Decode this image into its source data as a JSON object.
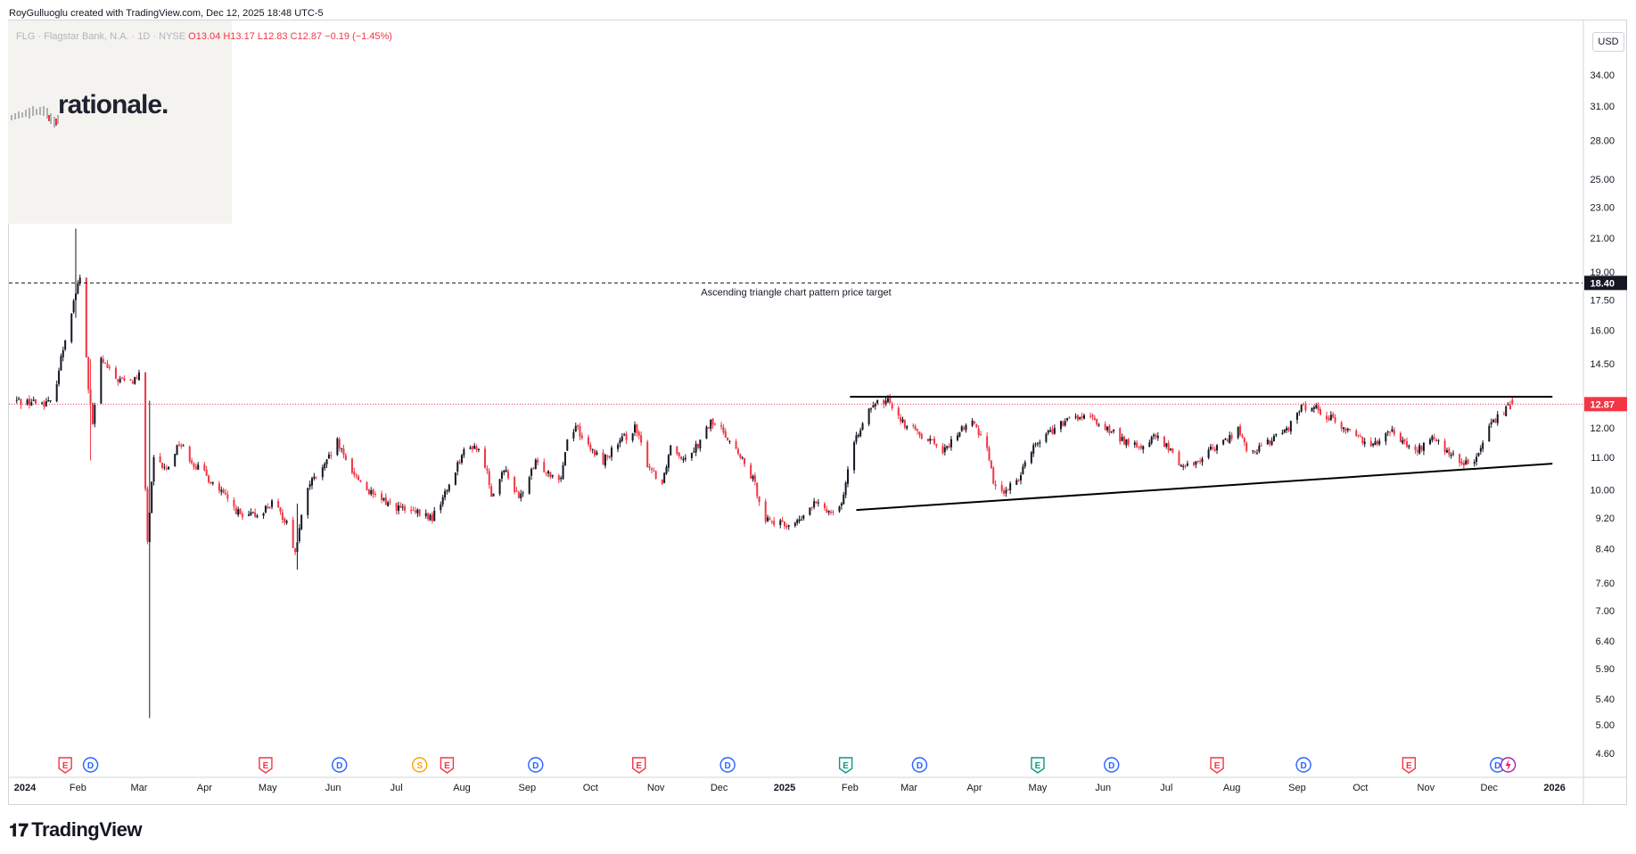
{
  "header": {
    "created_by": "RoyGulluoglu created with TradingView.com, Dec 12, 2025 18:48 UTC-5"
  },
  "legend": {
    "symbol": "FLG · Flagstar Bank, N.A. · 1D · NYSE",
    "open_label": "O",
    "open": "13.04",
    "high_label": "H",
    "high": "13.17",
    "low_label": "L",
    "low": "12.83",
    "close_label": "C",
    "close": "12.87",
    "change": "−0.19 (−1.45%)"
  },
  "watermark": {
    "text": "rationale."
  },
  "currency": "USD",
  "footer": {
    "brand": "TradingView",
    "brand_icon": "tradingview-logo-icon"
  },
  "colors": {
    "up": "#131722",
    "down": "#f23645",
    "price_line": "#f23645",
    "trendline": "#000000",
    "earnings": "#f23645",
    "dividend": "#2962ff",
    "split": "#f7a600",
    "earnings_future": "#089981"
  },
  "chart_data": {
    "type": "candlestick",
    "symbol": "FLG",
    "interval": "1D",
    "y_scale": "log",
    "ylim": [
      4.3,
      42
    ],
    "y_ticks": [
      "34.00",
      "31.00",
      "28.00",
      "25.00",
      "23.00",
      "21.00",
      "19.00",
      "17.50",
      "16.00",
      "14.50",
      "12.00",
      "11.00",
      "10.00",
      "9.20",
      "8.40",
      "7.60",
      "7.00",
      "6.40",
      "5.90",
      "5.40",
      "5.00",
      "4.60"
    ],
    "x_tick_labels": [
      "2024",
      "Feb",
      "Mar",
      "Apr",
      "May",
      "Jun",
      "Jul",
      "Aug",
      "Sep",
      "Oct",
      "Nov",
      "Dec",
      "2025",
      "Feb",
      "Mar",
      "Apr",
      "May",
      "Jun",
      "Jul",
      "Aug",
      "Sep",
      "Oct",
      "Nov",
      "Dec",
      "2026"
    ],
    "x_range": [
      "2024-01-01",
      "2026-01-31"
    ],
    "last_price": {
      "value": 12.87,
      "label": "12.87"
    },
    "annotations": [
      {
        "type": "horizontal_line",
        "value": 18.4,
        "label": "18.40",
        "style": "dashed",
        "text": "Ascending triangle chart pattern price target"
      },
      {
        "type": "trendline",
        "from": [
          "2025-02-01",
          13.15
        ],
        "to": [
          "2025-12-31",
          13.15
        ]
      },
      {
        "type": "trendline",
        "from": [
          "2025-02-04",
          9.42
        ],
        "to": [
          "2025-12-31",
          10.8
        ]
      }
    ],
    "price_path": [
      [
        "2024-01-03",
        13.0
      ],
      [
        "2024-01-20",
        12.9
      ],
      [
        "2024-01-31",
        17.9
      ],
      [
        "2024-02-02",
        18.6
      ],
      [
        "2024-02-06",
        13.5
      ],
      [
        "2024-02-08",
        12.1
      ],
      [
        "2024-02-12",
        14.7
      ],
      [
        "2024-02-18",
        13.9
      ],
      [
        "2024-02-26",
        13.7
      ],
      [
        "2024-03-01",
        14.0
      ],
      [
        "2024-03-05",
        8.6
      ],
      [
        "2024-03-08",
        10.9
      ],
      [
        "2024-03-14",
        10.6
      ],
      [
        "2024-03-20",
        11.5
      ],
      [
        "2024-03-27",
        10.8
      ],
      [
        "2024-04-05",
        10.2
      ],
      [
        "2024-04-12",
        9.7
      ],
      [
        "2024-04-19",
        9.2
      ],
      [
        "2024-04-26",
        9.3
      ],
      [
        "2024-05-03",
        9.6
      ],
      [
        "2024-05-10",
        9.1
      ],
      [
        "2024-05-14",
        8.3
      ],
      [
        "2024-05-20",
        10.1
      ],
      [
        "2024-05-28",
        10.7
      ],
      [
        "2024-06-03",
        11.5
      ],
      [
        "2024-06-06",
        11.0
      ],
      [
        "2024-06-12",
        10.4
      ],
      [
        "2024-06-20",
        9.8
      ],
      [
        "2024-06-28",
        9.6
      ],
      [
        "2024-07-05",
        9.4
      ],
      [
        "2024-07-12",
        9.3
      ],
      [
        "2024-07-18",
        9.2
      ],
      [
        "2024-07-25",
        10.0
      ],
      [
        "2024-08-01",
        11.1
      ],
      [
        "2024-08-07",
        11.4
      ],
      [
        "2024-08-12",
        10.8
      ],
      [
        "2024-08-15",
        9.9
      ],
      [
        "2024-08-22",
        10.6
      ],
      [
        "2024-08-28",
        9.7
      ],
      [
        "2024-09-05",
        10.8
      ],
      [
        "2024-09-12",
        10.5
      ],
      [
        "2024-09-17",
        10.4
      ],
      [
        "2024-09-20",
        11.6
      ],
      [
        "2024-09-24",
        12.1
      ],
      [
        "2024-09-30",
        11.3
      ],
      [
        "2024-10-07",
        10.9
      ],
      [
        "2024-10-15",
        11.5
      ],
      [
        "2024-10-22",
        12.0
      ],
      [
        "2024-10-28",
        10.8
      ],
      [
        "2024-11-04",
        10.2
      ],
      [
        "2024-11-08",
        11.4
      ],
      [
        "2024-11-14",
        11.0
      ],
      [
        "2024-11-22",
        11.5
      ],
      [
        "2024-11-27",
        12.2
      ],
      [
        "2024-12-03",
        11.9
      ],
      [
        "2024-12-10",
        11.1
      ],
      [
        "2024-12-17",
        10.3
      ],
      [
        "2024-12-23",
        9.2
      ],
      [
        "2024-12-31",
        9.0
      ],
      [
        "2025-01-08",
        9.1
      ],
      [
        "2025-01-15",
        9.6
      ],
      [
        "2025-01-22",
        9.4
      ],
      [
        "2025-01-28",
        9.6
      ],
      [
        "2025-02-01",
        10.9
      ],
      [
        "2025-02-07",
        12.3
      ],
      [
        "2025-02-14",
        12.9
      ],
      [
        "2025-02-20",
        13.0
      ],
      [
        "2025-02-26",
        12.2
      ],
      [
        "2025-03-04",
        11.9
      ],
      [
        "2025-03-11",
        11.6
      ],
      [
        "2025-03-18",
        11.2
      ],
      [
        "2025-03-25",
        11.9
      ],
      [
        "2025-03-31",
        12.2
      ],
      [
        "2025-04-07",
        11.4
      ],
      [
        "2025-04-10",
        10.2
      ],
      [
        "2025-04-16",
        9.9
      ],
      [
        "2025-04-22",
        10.4
      ],
      [
        "2025-04-28",
        11.3
      ],
      [
        "2025-05-05",
        11.8
      ],
      [
        "2025-05-12",
        12.1
      ],
      [
        "2025-05-19",
        12.4
      ],
      [
        "2025-05-27",
        12.3
      ],
      [
        "2025-06-02",
        12.0
      ],
      [
        "2025-06-10",
        11.6
      ],
      [
        "2025-06-18",
        11.3
      ],
      [
        "2025-06-26",
        11.7
      ],
      [
        "2025-07-03",
        11.2
      ],
      [
        "2025-07-09",
        10.7
      ],
      [
        "2025-07-16",
        10.9
      ],
      [
        "2025-07-23",
        11.3
      ],
      [
        "2025-07-30",
        11.6
      ],
      [
        "2025-08-04",
        12.0
      ],
      [
        "2025-08-08",
        11.2
      ],
      [
        "2025-08-15",
        11.3
      ],
      [
        "2025-08-22",
        11.7
      ],
      [
        "2025-08-29",
        12.1
      ],
      [
        "2025-09-02",
        12.7
      ],
      [
        "2025-09-09",
        12.8
      ],
      [
        "2025-09-16",
        12.4
      ],
      [
        "2025-09-23",
        12.0
      ],
      [
        "2025-09-30",
        11.7
      ],
      [
        "2025-10-07",
        11.4
      ],
      [
        "2025-10-14",
        12.0
      ],
      [
        "2025-10-21",
        11.5
      ],
      [
        "2025-10-28",
        11.2
      ],
      [
        "2025-11-04",
        11.7
      ],
      [
        "2025-11-10",
        11.2
      ],
      [
        "2025-11-17",
        10.9
      ],
      [
        "2025-11-21",
        10.75
      ],
      [
        "2025-11-26",
        11.1
      ],
      [
        "2025-12-02",
        12.1
      ],
      [
        "2025-12-08",
        12.6
      ],
      [
        "2025-12-12",
        12.87
      ]
    ],
    "extreme_wicks": [
      {
        "date": "2024-01-31",
        "high": 21.6,
        "low": 16.6
      },
      {
        "date": "2024-02-07",
        "high": 14.7,
        "low": 10.9
      },
      {
        "date": "2024-03-06",
        "high": 13.0,
        "low": 5.1
      },
      {
        "date": "2024-05-15",
        "high": 9.6,
        "low": 7.9
      }
    ],
    "events": [
      {
        "date": "2024-01-26",
        "type": "earnings",
        "label": "E"
      },
      {
        "date": "2024-02-07",
        "type": "dividend",
        "label": "D"
      },
      {
        "date": "2024-04-30",
        "type": "earnings",
        "label": "E"
      },
      {
        "date": "2024-06-04",
        "type": "dividend",
        "label": "D"
      },
      {
        "date": "2024-07-12",
        "type": "split",
        "label": "S"
      },
      {
        "date": "2024-07-25",
        "type": "earnings",
        "label": "E"
      },
      {
        "date": "2024-09-05",
        "type": "dividend",
        "label": "D"
      },
      {
        "date": "2024-10-24",
        "type": "earnings",
        "label": "E"
      },
      {
        "date": "2024-12-05",
        "type": "dividend",
        "label": "D"
      },
      {
        "date": "2025-01-30",
        "type": "earnings_future",
        "label": "E"
      },
      {
        "date": "2025-03-06",
        "type": "dividend",
        "label": "D"
      },
      {
        "date": "2025-05-01",
        "type": "earnings_future",
        "label": "E"
      },
      {
        "date": "2025-06-05",
        "type": "dividend",
        "label": "D"
      },
      {
        "date": "2025-07-25",
        "type": "earnings",
        "label": "E"
      },
      {
        "date": "2025-09-04",
        "type": "dividend",
        "label": "D"
      },
      {
        "date": "2025-10-24",
        "type": "earnings",
        "label": "E"
      },
      {
        "date": "2025-12-05",
        "type": "dividend",
        "label": "D"
      }
    ],
    "grid": false
  }
}
